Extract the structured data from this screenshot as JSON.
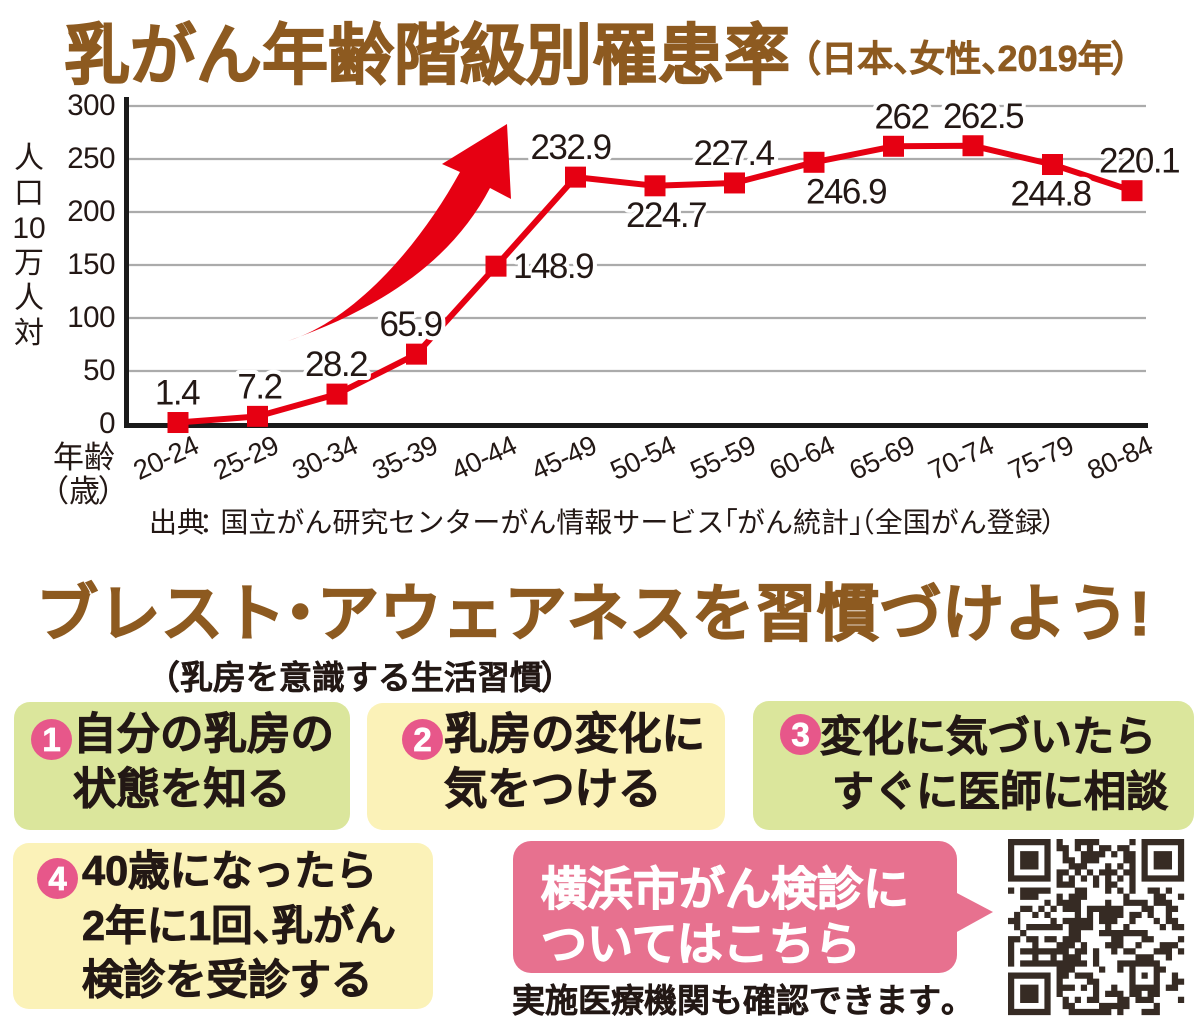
{
  "title": {
    "text": "乳がん年齢階級別罹患率",
    "note": "（日本、女性、2019年）"
  },
  "chart_data": {
    "type": "line",
    "title": "乳がん年齢階級別罹患率（日本、女性、2019年）",
    "ylabel": "人口10万人対",
    "ylabel_chars": [
      "人",
      "口",
      "10",
      "万",
      "人",
      "対"
    ],
    "xlabel_lines": [
      "年齢",
      "（歳）"
    ],
    "categories": [
      "20-24",
      "25-29",
      "30-34",
      "35-39",
      "40-44",
      "45-49",
      "50-54",
      "55-59",
      "60-64",
      "65-69",
      "70-74",
      "75-79",
      "80-84"
    ],
    "values": [
      1.4,
      7.2,
      28.2,
      65.9,
      148.9,
      232.9,
      224.7,
      227.4,
      246.9,
      262,
      262.5,
      244.8,
      220.1
    ],
    "labels": [
      "1.4",
      "7.2",
      "28.2",
      "65.9",
      "148.9",
      "232.9",
      "224.7",
      "227.4",
      "246.9",
      "262",
      "262.5",
      "244.8",
      "220.1"
    ],
    "label_pos": [
      "above",
      "above",
      "above",
      "above",
      "right",
      "above",
      "below",
      "above",
      "below",
      "above",
      "above",
      "below",
      "above"
    ],
    "label_dx": [
      -1,
      2,
      -1,
      -6,
      0,
      -5,
      11,
      -1,
      32,
      8,
      10,
      -2,
      7
    ],
    "ylim": [
      0,
      300
    ],
    "yticks": [
      300,
      250,
      200,
      150,
      100,
      50,
      0
    ],
    "grid": true,
    "legend": "none",
    "marker": "square"
  },
  "source_line": "出典：国立がん研究センターがん情報サービス「がん統計」（全国がん登録）",
  "awareness": {
    "heading": "ブレスト・アウェアネスを習慣づけよう!",
    "subheading": "（乳房を意識する生活習慣）"
  },
  "tips": [
    {
      "num": "1",
      "color": "green",
      "lines": [
        "自分の乳房の",
        "状態を知る"
      ]
    },
    {
      "num": "2",
      "color": "yellow",
      "lines": [
        "乳房の変化に",
        "気をつける"
      ]
    },
    {
      "num": "3",
      "color": "green",
      "lines": [
        "変化に気づいたら",
        "すぐに医師に相談"
      ]
    },
    {
      "num": "4",
      "color": "yellow",
      "lines": [
        "40歳になったら",
        "2年に1回、乳がん",
        "検診を受診する"
      ]
    }
  ],
  "cta": {
    "bubble_lines": [
      "横浜市がん検診に",
      "ついてはこちら"
    ],
    "note": "実施医療機関も確認できます。"
  },
  "qr_rows": [
    "11111110100111100000101111111",
    "10000010110101011011001000001",
    "10111010010011110101101011101",
    "10111010011011100001101011101",
    "10111010001110001010101011101",
    "10000010110101011101101000001",
    "11111110101010101010101111111",
    "00000000111000101100100000000",
    "10111110000110001010100110100",
    "00111000101110000001000011001",
    "00000010111100001001111011100",
    "00110101011101111110001100110",
    "01001010000101011110110100100",
    "11000001011111011100100010110",
    "01011111101111001001000001011",
    "00100000001100011111111000000",
    "11011011011100000110001100001",
    "10001000111010001110010001110",
    "10111111110110100101100011101",
    "10001001011100100000011100100",
    "10111111111110100011111110000",
    "00000000111000010010100011000",
    "11111110110111000000101010010",
    "10000010100001100000100010011",
    "10111010111010100100111110110",
    "10111010100000101110110110000",
    "10111010010101100011011100001",
    "10000010011000011111000010000",
    "11111110001111111010001110000"
  ],
  "colors": {
    "brown": "#8d5a20",
    "red": "#e60012",
    "pink_badge": "#e7578a",
    "pink_bubble": "#e7718f",
    "green_box": "#dbe69c",
    "yellow_box": "#fbf2b8",
    "grid": "#ababab",
    "ink": "#231815",
    "axis": "#1a1a1a",
    "qr": "#362b24",
    "white": "#ffffff"
  }
}
